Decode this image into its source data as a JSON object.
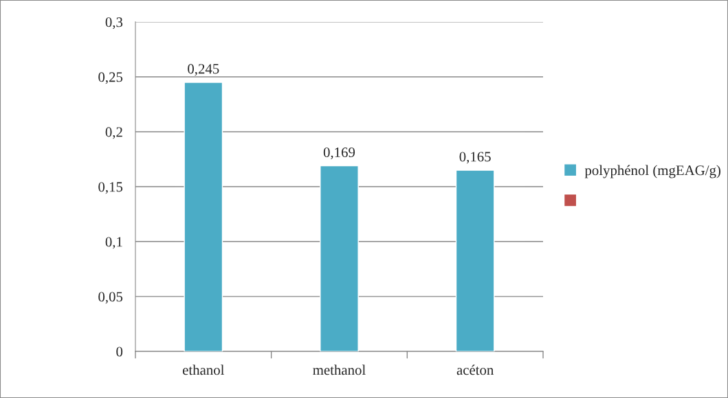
{
  "chart_data": {
    "type": "bar",
    "categories": [
      "ethanol",
      "methanol",
      "acéton"
    ],
    "series": [
      {
        "name": "polyphénol (mgEAG/g)",
        "color": "#4bacc6",
        "values": [
          0.245,
          0.169,
          0.165
        ],
        "value_labels": [
          "0,245",
          "0,169",
          "0,165"
        ]
      },
      {
        "color": "#c0504d",
        "values": [
          null,
          null,
          null
        ]
      }
    ],
    "ylim": [
      0,
      0.3
    ],
    "yticks": [
      {
        "value": 0,
        "label": "0"
      },
      {
        "value": 0.05,
        "label": "0,05"
      },
      {
        "value": 0.1,
        "label": "0,1"
      },
      {
        "value": 0.15,
        "label": "0,15"
      },
      {
        "value": 0.2,
        "label": "0,2"
      },
      {
        "value": 0.25,
        "label": "0,25"
      },
      {
        "value": 0.3,
        "label": "0,3"
      }
    ],
    "grid": "y",
    "legend": "right"
  }
}
